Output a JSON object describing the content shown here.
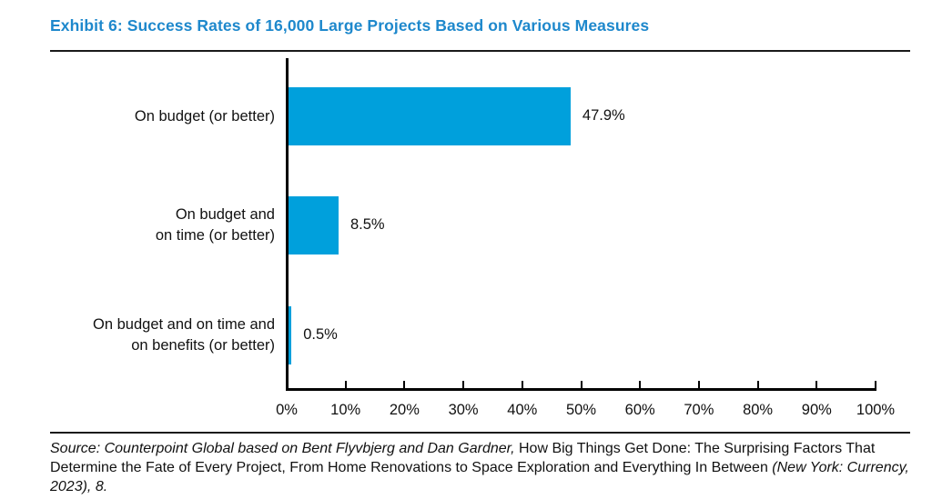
{
  "exhibit": {
    "title": "Exhibit 6: Success Rates of 16,000 Large Projects Based on Various Measures",
    "title_color": "#1e88cc"
  },
  "chart_data": {
    "type": "bar",
    "orientation": "horizontal",
    "title": "Exhibit 6: Success Rates of 16,000 Large Projects Based on Various Measures",
    "categories": [
      "On budget (or better)",
      "On budget and\non time (or better)",
      "On budget and on time and\non benefits (or better)"
    ],
    "values": [
      47.9,
      8.5,
      0.5
    ],
    "value_labels": [
      "47.9%",
      "8.5%",
      "0.5%"
    ],
    "bar_color": "#00a0dc",
    "xlabel": "",
    "ylabel": "",
    "xlim": [
      0,
      100
    ],
    "x_tick_values": [
      0,
      10,
      20,
      30,
      40,
      50,
      60,
      70,
      80,
      90,
      100
    ],
    "x_tick_labels": [
      "0%",
      "10%",
      "20%",
      "30%",
      "40%",
      "50%",
      "60%",
      "70%",
      "80%",
      "90%",
      "100%"
    ],
    "grid": false,
    "legend": "none"
  },
  "source": {
    "parts": [
      {
        "text": "Source: Counterpoint Global based on Bent Flyvbjerg and Dan Gardner, ",
        "style": "italic"
      },
      {
        "text": "How Big Things Get Done: The Surprising Factors That Determine the Fate of Every Project, From Home Renovations to Space Exploration and Everything In Between ",
        "style": "roman"
      },
      {
        "text": "(New York: Currency, 2023), 8.",
        "style": "italic"
      }
    ]
  }
}
